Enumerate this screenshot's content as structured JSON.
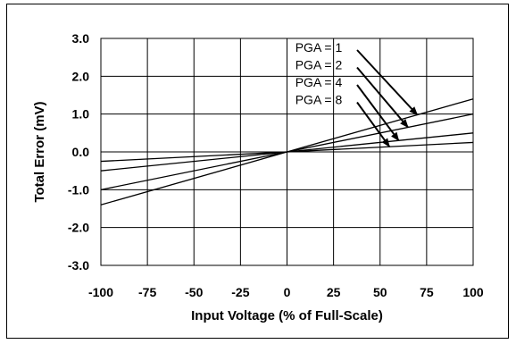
{
  "chart_data": {
    "type": "line",
    "title": "",
    "xlabel": "Input Voltage (% of Full-Scale)",
    "ylabel": "Total Error (mV)",
    "xlim": [
      -100,
      100
    ],
    "ylim": [
      -3.0,
      3.0
    ],
    "x_ticks": [
      -100,
      -75,
      -50,
      -25,
      0,
      25,
      50,
      75,
      100
    ],
    "x_tick_labels": [
      "-100",
      "-75",
      "-50",
      "-25",
      "0",
      "25",
      "50",
      "75",
      "100"
    ],
    "y_ticks": [
      3.0,
      2.0,
      1.0,
      0.0,
      -1.0,
      -2.0,
      -3.0
    ],
    "y_tick_labels": [
      "3.0",
      "2.0",
      "1.0",
      "0.0",
      "-1.0",
      "-2.0",
      "-3.0"
    ],
    "grid": true,
    "series": [
      {
        "name": "PGA = 1",
        "x": [
          -100,
          100
        ],
        "y": [
          -1.4,
          1.4
        ]
      },
      {
        "name": "PGA = 2",
        "x": [
          -100,
          100
        ],
        "y": [
          -1.0,
          1.0
        ]
      },
      {
        "name": "PGA = 4",
        "x": [
          -100,
          100
        ],
        "y": [
          -0.5,
          0.5
        ]
      },
      {
        "name": "PGA = 8",
        "x": [
          -100,
          100
        ],
        "y": [
          -0.25,
          0.25
        ]
      }
    ],
    "annotations": [
      {
        "text": "PGA = 1",
        "series": 0,
        "arrow_to": [
          70,
          0.98
        ]
      },
      {
        "text": "PGA = 2",
        "series": 1,
        "arrow_to": [
          65,
          0.65
        ]
      },
      {
        "text": "PGA = 4",
        "series": 2,
        "arrow_to": [
          60,
          0.3
        ]
      },
      {
        "text": "PGA = 8",
        "series": 3,
        "arrow_to": [
          55,
          0.14
        ]
      }
    ]
  }
}
